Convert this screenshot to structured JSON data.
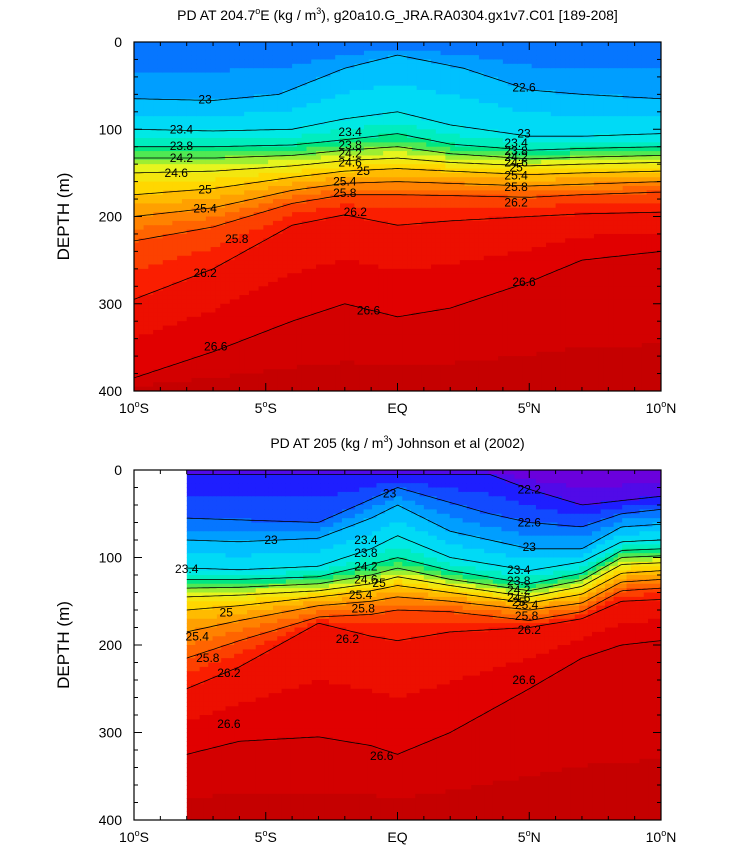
{
  "chart_data": [
    {
      "type": "heatmap",
      "title_parts": [
        "PD AT 204.7",
        "o",
        "E (kg / m",
        "3",
        "), g20a10.G_JRA.RA0304.gx1v7.C01 [189-208]"
      ],
      "ylabel": "DEPTH (m)",
      "xlim": [
        -10,
        10
      ],
      "ylim": [
        0,
        400
      ],
      "y_inverted": true,
      "data_x_start": -10,
      "x_ticks": [
        -10,
        -5,
        0,
        5,
        10
      ],
      "x_tick_labels": [
        [
          "10",
          "o",
          "S"
        ],
        [
          "5",
          "o",
          "S"
        ],
        [
          "EQ",
          "",
          ""
        ],
        [
          "5",
          "o",
          "N"
        ],
        [
          "10",
          "o",
          "N"
        ]
      ],
      "y_ticks": [
        0,
        100,
        200,
        300,
        400
      ],
      "y_tick_labels": [
        "0",
        "100",
        "200",
        "300",
        "400"
      ],
      "contour_interval": 0.2,
      "isopycnals": [
        {
          "level": 23.0,
          "x": [
            -10,
            -7,
            -4.5,
            -2,
            0,
            2.5,
            5,
            7,
            10
          ],
          "depth": [
            65,
            67,
            60,
            30,
            15,
            30,
            55,
            60,
            65
          ]
        },
        {
          "level": 23.4,
          "x": [
            -10,
            -7,
            -4,
            -2,
            0,
            2,
            5,
            7,
            10
          ],
          "depth": [
            100,
            102,
            100,
            88,
            80,
            95,
            108,
            108,
            105
          ]
        },
        {
          "level": 23.8,
          "x": [
            -10,
            -7,
            -4,
            -2,
            0,
            2,
            5,
            7,
            10
          ],
          "depth": [
            120,
            120,
            118,
            112,
            105,
            117,
            124,
            122,
            120
          ]
        },
        {
          "level": 24.2,
          "x": [
            -10,
            -7,
            -4,
            -2,
            0,
            2,
            5,
            7,
            10
          ],
          "depth": [
            133,
            133,
            130,
            124,
            120,
            128,
            134,
            132,
            130
          ]
        },
        {
          "level": 24.6,
          "x": [
            -10,
            -7,
            -4,
            -2,
            0,
            2,
            5,
            7,
            10
          ],
          "depth": [
            150,
            148,
            142,
            136,
            133,
            138,
            142,
            140,
            138
          ]
        },
        {
          "level": 25.0,
          "x": [
            -10,
            -7,
            -4,
            -2,
            0,
            2,
            5,
            7,
            10
          ],
          "depth": [
            175,
            168,
            155,
            148,
            145,
            148,
            152,
            150,
            148
          ]
        },
        {
          "level": 25.4,
          "x": [
            -10,
            -7,
            -4,
            -2,
            0,
            2,
            5,
            7,
            10
          ],
          "depth": [
            200,
            190,
            170,
            162,
            160,
            162,
            165,
            163,
            160
          ]
        },
        {
          "level": 25.8,
          "x": [
            -10,
            -7,
            -4,
            -2,
            0,
            2,
            5,
            7,
            10
          ],
          "depth": [
            228,
            212,
            185,
            175,
            175,
            176,
            178,
            175,
            172
          ]
        },
        {
          "level": 26.2,
          "x": [
            -10,
            -7,
            -4,
            -2,
            0,
            2,
            5,
            7,
            10
          ],
          "depth": [
            295,
            260,
            210,
            198,
            210,
            205,
            200,
            197,
            195
          ]
        },
        {
          "level": 26.6,
          "x": [
            -10,
            -7,
            -4,
            -2,
            0,
            2,
            5,
            7,
            10
          ],
          "depth": [
            385,
            355,
            320,
            300,
            315,
            305,
            275,
            250,
            240
          ]
        }
      ],
      "labels": [
        {
          "text": "23",
          "x": -7.3,
          "depth": 66
        },
        {
          "text": "22.6",
          "x": 4.8,
          "depth": 52
        },
        {
          "text": "23.4",
          "x": -8.2,
          "depth": 100
        },
        {
          "text": "23.8",
          "x": -8.2,
          "depth": 119
        },
        {
          "text": "24.2",
          "x": -8.2,
          "depth": 133
        },
        {
          "text": "24.6",
          "x": -8.4,
          "depth": 150
        },
        {
          "text": "25",
          "x": -7.3,
          "depth": 169
        },
        {
          "text": "25.4",
          "x": -7.3,
          "depth": 191
        },
        {
          "text": "25.8",
          "x": -6.1,
          "depth": 226
        },
        {
          "text": "26.2",
          "x": -7.3,
          "depth": 265
        },
        {
          "text": "26.6",
          "x": -6.9,
          "depth": 349
        },
        {
          "text": "23.4",
          "x": -1.8,
          "depth": 103
        },
        {
          "text": "23.8",
          "x": -1.8,
          "depth": 118
        },
        {
          "text": "24.2",
          "x": -1.8,
          "depth": 128
        },
        {
          "text": "24.6",
          "x": -1.8,
          "depth": 138
        },
        {
          "text": "25",
          "x": -1.3,
          "depth": 148
        },
        {
          "text": "25.4",
          "x": -2.0,
          "depth": 160
        },
        {
          "text": "25.8",
          "x": -2.0,
          "depth": 173
        },
        {
          "text": "26.2",
          "x": -1.6,
          "depth": 195
        },
        {
          "text": "26.6",
          "x": -1.1,
          "depth": 308
        },
        {
          "text": "26.6",
          "x": 4.8,
          "depth": 275
        },
        {
          "text": "23",
          "x": 4.8,
          "depth": 105
        },
        {
          "text": "23.4",
          "x": 4.5,
          "depth": 116
        },
        {
          "text": "23.8",
          "x": 4.5,
          "depth": 125
        },
        {
          "text": "24.2",
          "x": 4.5,
          "depth": 132
        },
        {
          "text": "24.6",
          "x": 4.5,
          "depth": 138
        },
        {
          "text": "25",
          "x": 4.5,
          "depth": 144
        },
        {
          "text": "25.4",
          "x": 4.5,
          "depth": 153
        },
        {
          "text": "25.8",
          "x": 4.5,
          "depth": 166
        },
        {
          "text": "26.2",
          "x": 4.5,
          "depth": 184
        }
      ]
    },
    {
      "type": "heatmap",
      "title_parts": [
        "PD AT 205 (kg / m",
        "3",
        ") Johnson et al (2002)",
        "",
        ""
      ],
      "ylabel": "DEPTH (m)",
      "xlim": [
        -10,
        10
      ],
      "ylim": [
        0,
        400
      ],
      "y_inverted": true,
      "data_x_start": -8,
      "x_ticks": [
        -10,
        -5,
        0,
        5,
        10
      ],
      "x_tick_labels": [
        [
          "10",
          "o",
          "S"
        ],
        [
          "5",
          "o",
          "S"
        ],
        [
          "EQ",
          "",
          ""
        ],
        [
          "5",
          "o",
          "N"
        ],
        [
          "10",
          "o",
          "N"
        ]
      ],
      "y_ticks": [
        0,
        100,
        200,
        300,
        400
      ],
      "y_tick_labels": [
        "0",
        "100",
        "200",
        "300",
        "400"
      ],
      "contour_interval": 0.2,
      "isopycnals": [
        {
          "level": 22.2,
          "x": [
            -8,
            -3,
            3.5,
            5,
            7,
            8.5,
            10
          ],
          "depth": [
            5,
            5,
            5,
            22,
            40,
            35,
            30
          ]
        },
        {
          "level": 22.6,
          "x": [
            -8,
            -3,
            0,
            3.5,
            5,
            7,
            8.5,
            10
          ],
          "depth": [
            55,
            60,
            20,
            50,
            60,
            65,
            50,
            45
          ]
        },
        {
          "level": 23.0,
          "x": [
            -8,
            -6,
            -3,
            -1,
            0,
            2,
            5,
            7,
            8.5,
            10
          ],
          "depth": [
            80,
            82,
            78,
            55,
            40,
            70,
            90,
            90,
            65,
            62
          ]
        },
        {
          "level": 23.4,
          "x": [
            -8,
            -6,
            -3,
            -1,
            0,
            2,
            5,
            7,
            8.5,
            10
          ],
          "depth": [
            112,
            114,
            110,
            90,
            75,
            100,
            115,
            105,
            82,
            80
          ]
        },
        {
          "level": 23.8,
          "x": [
            -8,
            -6,
            -3,
            -1,
            0,
            2,
            5,
            7,
            8.5,
            10
          ],
          "depth": [
            125,
            125,
            122,
            108,
            100,
            115,
            130,
            118,
            92,
            90
          ]
        },
        {
          "level": 24.2,
          "x": [
            -8,
            -6,
            -3,
            -1,
            0,
            2,
            5,
            7,
            8.5,
            10
          ],
          "depth": [
            135,
            134,
            130,
            120,
            112,
            125,
            138,
            126,
            100,
            98
          ]
        },
        {
          "level": 24.6,
          "x": [
            -8,
            -6,
            -3,
            -1,
            0,
            2,
            5,
            7,
            8.5,
            10
          ],
          "depth": [
            145,
            143,
            138,
            130,
            122,
            132,
            145,
            133,
            108,
            106
          ]
        },
        {
          "level": 25.0,
          "x": [
            -8,
            -6,
            -3,
            -1,
            0,
            2,
            5,
            7,
            8.5,
            10
          ],
          "depth": [
            160,
            155,
            145,
            138,
            132,
            140,
            152,
            142,
            118,
            115
          ]
        },
        {
          "level": 25.4,
          "x": [
            -8,
            -6,
            -3,
            -1,
            0,
            2,
            5,
            7,
            8.5,
            10
          ],
          "depth": [
            185,
            172,
            155,
            150,
            145,
            150,
            160,
            152,
            128,
            125
          ]
        },
        {
          "level": 25.8,
          "x": [
            -8,
            -6,
            -3,
            -1,
            0,
            2,
            5,
            7,
            8.5,
            10
          ],
          "depth": [
            215,
            195,
            168,
            165,
            160,
            162,
            172,
            162,
            138,
            135
          ]
        },
        {
          "level": 26.2,
          "x": [
            -8,
            -6,
            -3,
            -1,
            0,
            2,
            5,
            7,
            8.5,
            10
          ],
          "depth": [
            250,
            225,
            175,
            190,
            195,
            185,
            180,
            170,
            150,
            148
          ]
        },
        {
          "level": 26.6,
          "x": [
            -8,
            -6,
            -3,
            -1,
            0,
            2,
            5,
            7,
            8.5,
            10
          ],
          "depth": [
            325,
            310,
            305,
            315,
            325,
            300,
            250,
            215,
            200,
            195
          ]
        }
      ],
      "labels": [
        {
          "text": "22.2",
          "x": 5.0,
          "depth": 22
        },
        {
          "text": "23",
          "x": -0.3,
          "depth": 27
        },
        {
          "text": "22.6",
          "x": 5.0,
          "depth": 60
        },
        {
          "text": "23",
          "x": -4.8,
          "depth": 80
        },
        {
          "text": "23",
          "x": 5.0,
          "depth": 88
        },
        {
          "text": "23.4",
          "x": -8.0,
          "depth": 113
        },
        {
          "text": "25",
          "x": -6.5,
          "depth": 163
        },
        {
          "text": "25.4",
          "x": -7.6,
          "depth": 190
        },
        {
          "text": "25.8",
          "x": -7.2,
          "depth": 215
        },
        {
          "text": "26.2",
          "x": -6.4,
          "depth": 232
        },
        {
          "text": "26.6",
          "x": -6.4,
          "depth": 290
        },
        {
          "text": "23.4",
          "x": -1.2,
          "depth": 80
        },
        {
          "text": "23.8",
          "x": -1.2,
          "depth": 95
        },
        {
          "text": "24.2",
          "x": -1.2,
          "depth": 110
        },
        {
          "text": "24.6",
          "x": -1.2,
          "depth": 125
        },
        {
          "text": "25",
          "x": -0.7,
          "depth": 129
        },
        {
          "text": "25.4",
          "x": -1.4,
          "depth": 143
        },
        {
          "text": "25.8",
          "x": -1.3,
          "depth": 158
        },
        {
          "text": "26.2",
          "x": -1.9,
          "depth": 193
        },
        {
          "text": "26.6",
          "x": -0.6,
          "depth": 327
        },
        {
          "text": "26.6",
          "x": 4.8,
          "depth": 240
        },
        {
          "text": "23.4",
          "x": 4.6,
          "depth": 114
        },
        {
          "text": "23.8",
          "x": 4.6,
          "depth": 127
        },
        {
          "text": "24.2",
          "x": 4.6,
          "depth": 137
        },
        {
          "text": "24.6",
          "x": 4.6,
          "depth": 146
        },
        {
          "text": "25",
          "x": 4.6,
          "depth": 151
        },
        {
          "text": "25.4",
          "x": 4.9,
          "depth": 154
        },
        {
          "text": "25.8",
          "x": 4.9,
          "depth": 167
        },
        {
          "text": "26.2",
          "x": 5.0,
          "depth": 183
        }
      ]
    }
  ]
}
